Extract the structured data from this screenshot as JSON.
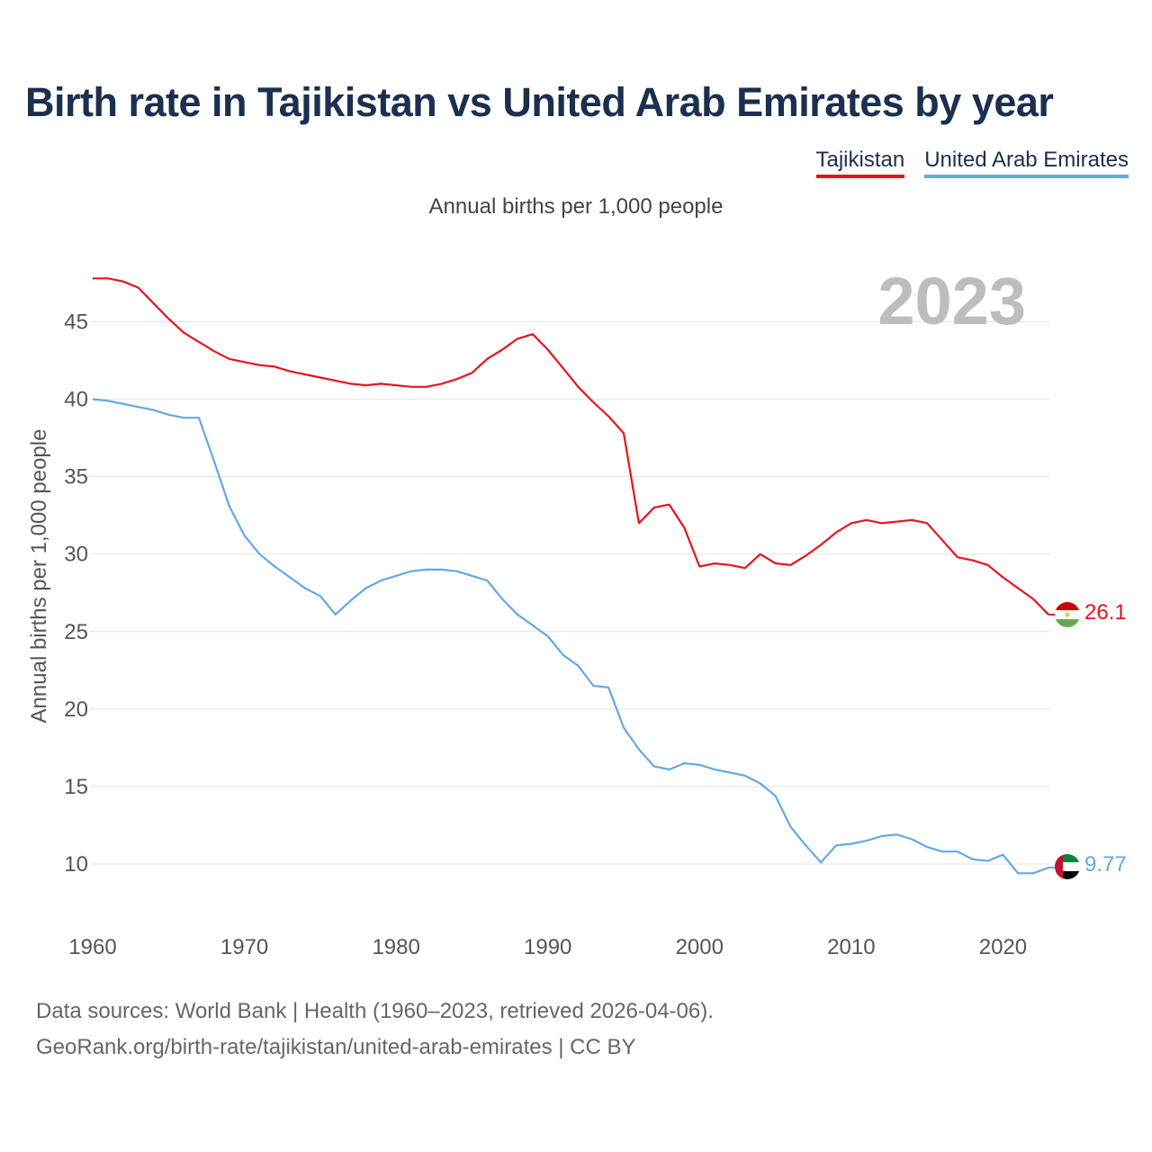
{
  "title": "Birth rate in Tajikistan vs United Arab Emirates by year",
  "subtitle": "Annual births per 1,000 people",
  "legend": {
    "tajikistan": "Tajikistan",
    "uae": "United Arab Emirates"
  },
  "footer": {
    "line1": "Data sources: World Bank | Health (1960–2023, retrieved 2026-04-06).",
    "line2": "GeoRank.org/birth-rate/tajikistan/united-arab-emirates | CC BY"
  },
  "chart_data": {
    "type": "line",
    "title": "Birth rate in Tajikistan vs United Arab Emirates by year",
    "ylabel": "Annual births per 1,000 people",
    "xlabel": "",
    "year_label": "2023",
    "xlim": [
      1960,
      2023
    ],
    "ylim": [
      6.5,
      48
    ],
    "x_ticks": [
      1960,
      1970,
      1980,
      1990,
      2000,
      2010,
      2020
    ],
    "y_ticks": [
      10,
      15,
      20,
      25,
      30,
      35,
      40,
      45
    ],
    "grid": true,
    "colors": {
      "tajikistan": "#e8141c",
      "uae": "#64a8e6"
    },
    "x": [
      1960,
      1961,
      1962,
      1963,
      1964,
      1965,
      1966,
      1967,
      1968,
      1969,
      1970,
      1971,
      1972,
      1973,
      1974,
      1975,
      1976,
      1977,
      1978,
      1979,
      1980,
      1981,
      1982,
      1983,
      1984,
      1985,
      1986,
      1987,
      1988,
      1989,
      1990,
      1991,
      1992,
      1993,
      1994,
      1995,
      1996,
      1997,
      1998,
      1999,
      2000,
      2001,
      2002,
      2003,
      2004,
      2005,
      2006,
      2007,
      2008,
      2009,
      2010,
      2011,
      2012,
      2013,
      2014,
      2015,
      2016,
      2017,
      2018,
      2019,
      2020,
      2021,
      2022,
      2023
    ],
    "series": [
      {
        "name": "Tajikistan",
        "end_label": "26.1",
        "values": [
          47.8,
          47.8,
          47.6,
          47.2,
          46.2,
          45.2,
          44.3,
          43.7,
          43.1,
          42.6,
          42.4,
          42.2,
          42.1,
          41.8,
          41.6,
          41.4,
          41.2,
          41.0,
          40.9,
          41.0,
          40.9,
          40.8,
          40.8,
          41.0,
          41.3,
          41.7,
          42.6,
          43.2,
          43.9,
          44.2,
          43.2,
          42.0,
          40.8,
          39.8,
          38.9,
          37.8,
          32.0,
          33.0,
          33.2,
          31.7,
          29.2,
          29.4,
          29.3,
          29.1,
          30.0,
          29.4,
          29.3,
          29.9,
          30.6,
          31.4,
          32.0,
          32.2,
          32.0,
          32.1,
          32.2,
          32.0,
          30.9,
          29.8,
          29.6,
          29.3,
          28.5,
          27.8,
          27.1,
          26.1
        ]
      },
      {
        "name": "United Arab Emirates",
        "end_label": "9.77",
        "values": [
          40.0,
          39.9,
          39.7,
          39.5,
          39.3,
          39.0,
          38.8,
          38.8,
          36.0,
          33.1,
          31.2,
          30.0,
          29.2,
          28.5,
          27.8,
          27.3,
          26.1,
          27.0,
          27.8,
          28.3,
          28.6,
          28.9,
          29.0,
          29.0,
          28.9,
          28.6,
          28.3,
          27.1,
          26.1,
          25.4,
          24.7,
          23.5,
          22.8,
          21.5,
          21.4,
          18.8,
          17.4,
          16.3,
          16.1,
          16.5,
          16.4,
          16.1,
          15.9,
          15.7,
          15.2,
          14.4,
          12.4,
          11.2,
          10.1,
          11.2,
          11.3,
          11.5,
          11.8,
          11.9,
          11.6,
          11.1,
          10.8,
          10.8,
          10.3,
          10.2,
          10.6,
          9.4,
          9.4,
          9.77
        ]
      }
    ]
  }
}
